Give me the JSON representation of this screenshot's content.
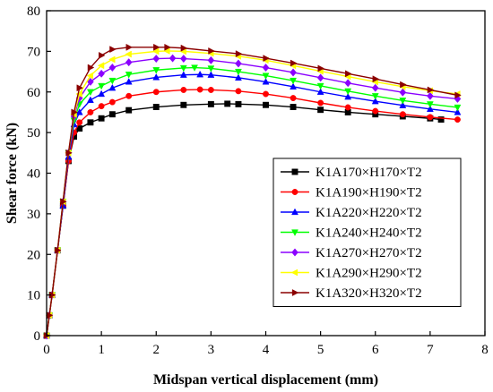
{
  "chart_data": {
    "type": "line",
    "xlabel": "Midspan vertical displacement (mm)",
    "ylabel": "Shear force (kN)",
    "xlim": [
      0,
      8
    ],
    "ylim": [
      0,
      80
    ],
    "xticks": [
      0,
      1,
      2,
      3,
      4,
      5,
      6,
      7,
      8
    ],
    "yticks": [
      0,
      10,
      20,
      30,
      40,
      50,
      60,
      70,
      80
    ],
    "grid": false,
    "legend_position": "right-middle",
    "series": [
      {
        "name": "K1A170×H170×T2",
        "color": "#000000",
        "marker": "square",
        "x": [
          0,
          0.05,
          0.1,
          0.2,
          0.3,
          0.4,
          0.5,
          0.6,
          0.8,
          1.0,
          1.2,
          1.5,
          2.0,
          2.5,
          3.0,
          3.3,
          3.5,
          4.0,
          4.5,
          5.0,
          5.5,
          6.0,
          6.5,
          7.0,
          7.2
        ],
        "y": [
          0,
          5,
          10,
          21,
          32,
          43,
          49,
          51,
          52.5,
          53.5,
          54.5,
          55.5,
          56.3,
          56.8,
          57.0,
          57.1,
          57.0,
          56.8,
          56.3,
          55.6,
          55.0,
          54.5,
          54.0,
          53.5,
          53.2
        ]
      },
      {
        "name": "K1A190×H190×T2",
        "color": "#ff0000",
        "marker": "circle",
        "x": [
          0,
          0.05,
          0.1,
          0.2,
          0.3,
          0.4,
          0.5,
          0.6,
          0.8,
          1.0,
          1.2,
          1.5,
          2.0,
          2.5,
          2.8,
          3.0,
          3.5,
          4.0,
          4.5,
          5.0,
          5.5,
          6.0,
          6.5,
          7.0,
          7.5
        ],
        "y": [
          0,
          5,
          10,
          21,
          32,
          43,
          50,
          52.5,
          55,
          56.5,
          57.5,
          59,
          60,
          60.5,
          60.6,
          60.5,
          60.2,
          59.5,
          58.5,
          57.3,
          56.2,
          55.3,
          54.5,
          53.8,
          53.2
        ]
      },
      {
        "name": "K1A220×H220×T2",
        "color": "#0000ff",
        "marker": "triangle-up",
        "x": [
          0,
          0.05,
          0.1,
          0.2,
          0.3,
          0.4,
          0.5,
          0.6,
          0.8,
          1.0,
          1.2,
          1.5,
          2.0,
          2.5,
          2.8,
          3.0,
          3.5,
          4.0,
          4.5,
          5.0,
          5.5,
          6.0,
          6.5,
          7.0,
          7.5
        ],
        "y": [
          0,
          5,
          10,
          21,
          32,
          44,
          52,
          55,
          58,
          59.5,
          61,
          62.5,
          63.6,
          64.2,
          64.3,
          64.2,
          63.5,
          62.5,
          61.3,
          60,
          58.8,
          57.7,
          56.7,
          55.8,
          55.0
        ]
      },
      {
        "name": "K1A240×H240×T2",
        "color": "#00ff00",
        "marker": "triangle-down",
        "x": [
          0,
          0.05,
          0.1,
          0.2,
          0.3,
          0.4,
          0.5,
          0.6,
          0.8,
          1.0,
          1.2,
          1.5,
          2.0,
          2.5,
          2.7,
          3.0,
          3.5,
          4.0,
          4.5,
          5.0,
          5.5,
          6.0,
          6.5,
          7.0,
          7.5
        ],
        "y": [
          0,
          5,
          10,
          21,
          33,
          45,
          53,
          57,
          60,
          61.5,
          62.8,
          64.3,
          65.4,
          65.9,
          66,
          65.8,
          65,
          64,
          62.8,
          61.5,
          60.2,
          59,
          57.9,
          57,
          56.2
        ]
      },
      {
        "name": "K1A270×H270×T2",
        "color": "#8b00ff",
        "marker": "diamond",
        "x": [
          0,
          0.05,
          0.1,
          0.2,
          0.3,
          0.4,
          0.5,
          0.6,
          0.8,
          1.0,
          1.2,
          1.5,
          2.0,
          2.3,
          2.5,
          3.0,
          3.5,
          4.0,
          4.5,
          5.0,
          5.5,
          6.0,
          6.5,
          7.0,
          7.5
        ],
        "y": [
          0,
          5,
          10,
          21,
          33,
          45,
          54,
          58.5,
          62.5,
          64.5,
          66,
          67.3,
          68.2,
          68.3,
          68.2,
          67.8,
          67,
          66,
          64.8,
          63.5,
          62.2,
          61,
          59.9,
          59,
          58.3
        ]
      },
      {
        "name": "K1A290×H290×T2",
        "color": "#ffff00",
        "marker": "triangle-left",
        "x": [
          0,
          0.05,
          0.1,
          0.2,
          0.3,
          0.4,
          0.5,
          0.6,
          0.8,
          1.0,
          1.2,
          1.5,
          2.0,
          2.2,
          2.5,
          3.0,
          3.5,
          4.0,
          4.5,
          5.0,
          5.5,
          6.0,
          6.5,
          7.0,
          7.5
        ],
        "y": [
          0,
          5,
          10,
          21,
          33,
          45,
          54.5,
          59.5,
          64,
          66.5,
          68,
          69.3,
          70,
          70.1,
          70,
          69.5,
          68.8,
          67.8,
          66.5,
          65.1,
          63.8,
          62.5,
          61.3,
          60.3,
          59.5
        ]
      },
      {
        "name": "K1A320×H320×T2",
        "color": "#8b0000",
        "marker": "triangle-right",
        "x": [
          0,
          0.05,
          0.1,
          0.2,
          0.3,
          0.4,
          0.5,
          0.6,
          0.8,
          1.0,
          1.2,
          1.5,
          2.0,
          2.2,
          2.5,
          3.0,
          3.5,
          4.0,
          4.5,
          5.0,
          5.5,
          6.0,
          6.5,
          7.0,
          7.5
        ],
        "y": [
          0,
          5,
          10,
          21,
          33,
          45,
          55,
          61,
          66,
          69,
          70.5,
          71,
          71,
          71,
          70.8,
          70.1,
          69.4,
          68.3,
          67.1,
          65.8,
          64.5,
          63.2,
          61.8,
          60.5,
          59.2
        ]
      }
    ]
  }
}
